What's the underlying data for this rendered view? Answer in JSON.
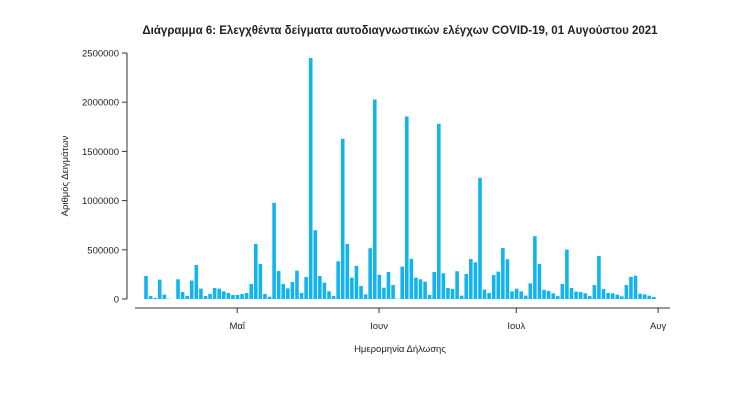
{
  "chart_data": {
    "type": "bar",
    "title": "Διάγραμμα 6: Ελεγχθέντα δείγματα αυτοδιαγνωστικών ελέγχων COVID-19, 01 Αυγούστου 2021",
    "xlabel": "Ημερομηνία Δήλωσης",
    "ylabel": "Αριθμός Δειγμάτων",
    "ylim": [
      0,
      2500000
    ],
    "yticks": [
      "0",
      "500000",
      "1000000",
      "1500000",
      "2000000",
      "2500000"
    ],
    "ytick_values": [
      0,
      500000,
      1000000,
      1500000,
      2000000,
      2500000
    ],
    "x_start": "2021-04-11",
    "x_unit": "day",
    "xticks": [
      {
        "label": "Μαΐ",
        "day": 20
      },
      {
        "label": "Ιουν",
        "day": 51
      },
      {
        "label": "Ιουλ",
        "day": 81
      },
      {
        "label": "Αυγ",
        "day": 112
      }
    ],
    "grid": false,
    "bar_color": "#12b4f0",
    "values": [
      234000,
      30000,
      10000,
      197000,
      44000,
      3000,
      0,
      200000,
      71000,
      30000,
      187000,
      346000,
      105000,
      30000,
      51000,
      112000,
      105000,
      78000,
      61000,
      41000,
      41000,
      51000,
      61000,
      153000,
      560000,
      356000,
      51000,
      24000,
      977000,
      285000,
      153000,
      108000,
      173000,
      288000,
      61000,
      224000,
      2449000,
      699000,
      234000,
      166000,
      78000,
      30000,
      383000,
      1628000,
      560000,
      217000,
      336000,
      132000,
      47000,
      516000,
      2028000,
      244000,
      115000,
      275000,
      142000,
      3000,
      329000,
      1855000,
      407000,
      217000,
      200000,
      176000,
      41000,
      275000,
      1781000,
      261000,
      112000,
      102000,
      282000,
      34000,
      254000,
      407000,
      373000,
      1231000,
      95000,
      61000,
      244000,
      278000,
      519000,
      404000,
      78000,
      105000,
      78000,
      34000,
      159000,
      638000,
      356000,
      92000,
      81000,
      58000,
      30000,
      153000,
      502000,
      112000,
      75000,
      71000,
      58000,
      30000,
      142000,
      438000,
      102000,
      61000,
      58000,
      44000,
      27000,
      142000,
      224000,
      237000,
      54000,
      47000,
      34000,
      20000
    ]
  }
}
